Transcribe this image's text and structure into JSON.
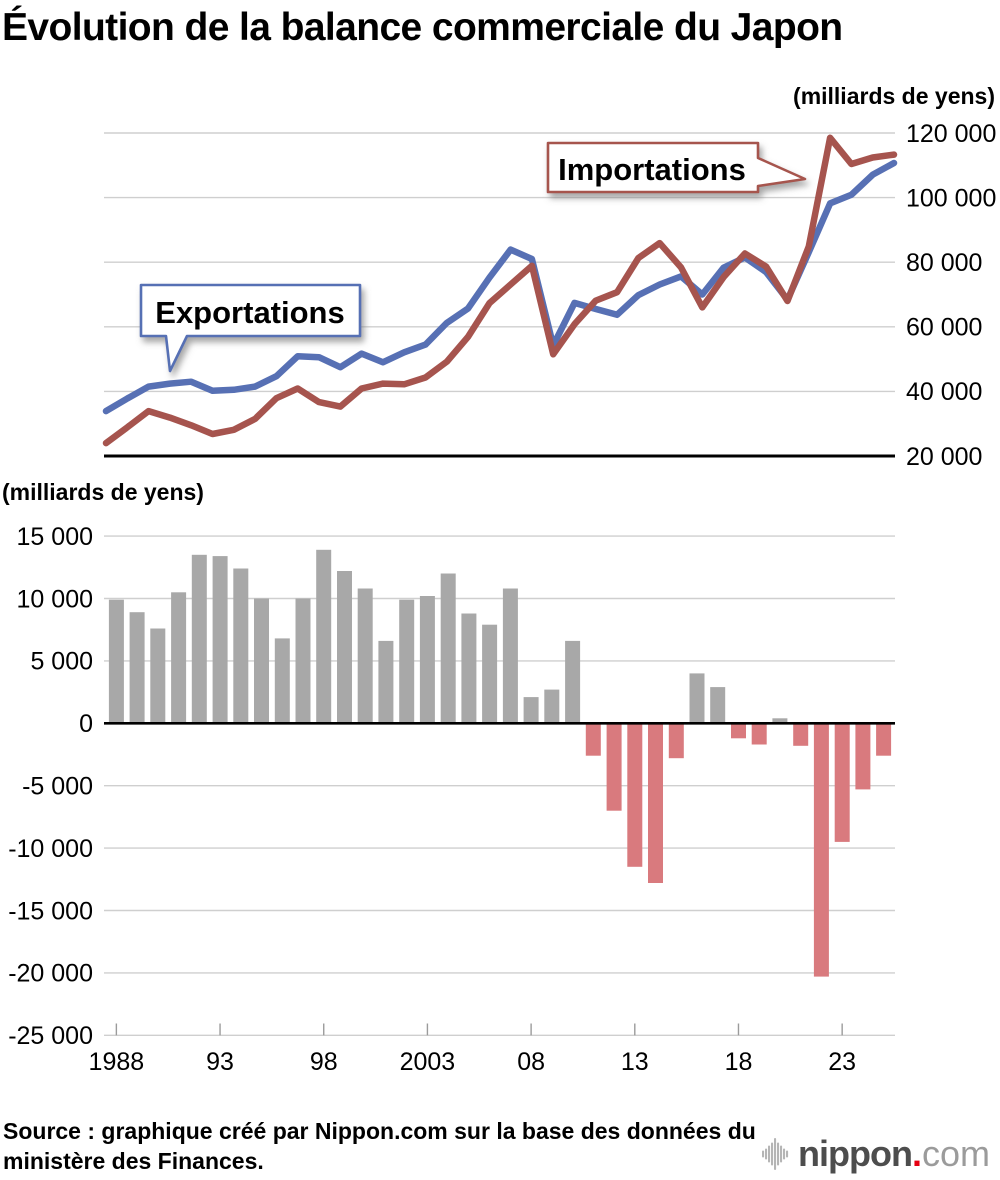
{
  "title": "Évolution de la balance commerciale du Japon",
  "top_unit_label": "(milliards de yens)",
  "bottom_unit_label": "(milliards de yens)",
  "source_line1": "Source : graphique créé par Nippon.com sur la base des données du",
  "source_line2": "ministère des Finances.",
  "logo": {
    "main": "nippon",
    "dot": ".",
    "tld": "com"
  },
  "colors": {
    "exports_line": "#5770B4",
    "imports_line": "#A6544E",
    "positive_bar": "#A8A8A8",
    "negative_bar": "#D97A7E",
    "grid": "#CFCFCF",
    "axis": "#000000",
    "tick": "#9B9B9B",
    "callout_fill": "#FFFFFF",
    "logo_main": "#4D4D4D",
    "logo_tld": "#9B9B9B",
    "logo_dot": "#E60012",
    "logo_icon": "#B5B5B5"
  },
  "chart_data": [
    {
      "type": "line",
      "title": "Exportations et importations du Japon",
      "unit": "milliards de yens",
      "x": [
        1988,
        1989,
        1990,
        1991,
        1992,
        1993,
        1994,
        1995,
        1996,
        1997,
        1998,
        1999,
        2000,
        2001,
        2002,
        2003,
        2004,
        2005,
        2006,
        2007,
        2008,
        2009,
        2010,
        2011,
        2012,
        2013,
        2014,
        2015,
        2016,
        2017,
        2018,
        2019,
        2020,
        2021,
        2022,
        2023,
        2024,
        2025
      ],
      "series": [
        {
          "name": "Exportations",
          "values": [
            33900,
            37800,
            41500,
            42400,
            43000,
            40200,
            40500,
            41500,
            44700,
            50900,
            50600,
            47500,
            51700,
            49000,
            52100,
            54500,
            61200,
            65700,
            75200,
            83900,
            81000,
            54200,
            67400,
            65500,
            63700,
            69800,
            73100,
            75600,
            70000,
            78300,
            81500,
            76900,
            68400,
            83100,
            98200,
            100900,
            107100,
            110700
          ]
        },
        {
          "name": "Importations",
          "values": [
            24000,
            28900,
            33900,
            31900,
            29500,
            26800,
            28100,
            31500,
            37900,
            40900,
            36700,
            35300,
            40900,
            42400,
            42200,
            44300,
            49200,
            56900,
            67300,
            73100,
            78900,
            51500,
            60800,
            68100,
            70700,
            81300,
            85900,
            78400,
            66000,
            75400,
            82700,
            78600,
            68000,
            84900,
            118500,
            110400,
            112400,
            113300
          ]
        }
      ],
      "ylim": [
        20000,
        120000
      ],
      "grid": true,
      "legend_position": "callouts",
      "y_ticks": [
        {
          "value": 120000,
          "label": "120 000"
        },
        {
          "value": 100000,
          "label": "100 000"
        },
        {
          "value": 80000,
          "label": "80 000"
        },
        {
          "value": 60000,
          "label": "60 000"
        },
        {
          "value": 40000,
          "label": "40 000"
        },
        {
          "value": 20000,
          "label": "20 000"
        }
      ],
      "annotations": [
        {
          "text": "Exportations",
          "series": "Exportations"
        },
        {
          "text": "Importations",
          "series": "Importations"
        }
      ]
    },
    {
      "type": "bar",
      "title": "Balance commerciale du Japon",
      "unit": "milliards de yens",
      "x": [
        1988,
        1989,
        1990,
        1991,
        1992,
        1993,
        1994,
        1995,
        1996,
        1997,
        1998,
        1999,
        2000,
        2001,
        2002,
        2003,
        2004,
        2005,
        2006,
        2007,
        2008,
        2009,
        2010,
        2011,
        2012,
        2013,
        2014,
        2015,
        2016,
        2017,
        2018,
        2019,
        2020,
        2021,
        2022,
        2023,
        2024,
        2025
      ],
      "values": [
        9900,
        8900,
        7600,
        10500,
        13500,
        13400,
        12400,
        10000,
        6800,
        10000,
        13900,
        12200,
        10800,
        6600,
        9900,
        10200,
        12000,
        8800,
        7900,
        10800,
        2100,
        2700,
        6600,
        -2600,
        -7000,
        -11500,
        -12800,
        -2800,
        4000,
        2900,
        -1200,
        -1700,
        400,
        -1800,
        -20300,
        -9500,
        -5300,
        -2600
      ],
      "ylim": [
        -25000,
        15000
      ],
      "grid": true,
      "y_ticks": [
        {
          "value": 15000,
          "label": "15 000"
        },
        {
          "value": 10000,
          "label": "10 000"
        },
        {
          "value": 5000,
          "label": "5 000"
        },
        {
          "value": 0,
          "label": "0"
        },
        {
          "value": -5000,
          "label": "-5 000"
        },
        {
          "value": -10000,
          "label": "-10 000"
        },
        {
          "value": -15000,
          "label": "-15 000"
        },
        {
          "value": -20000,
          "label": "-20 000"
        },
        {
          "value": -25000,
          "label": "-25 000"
        }
      ],
      "x_ticks": [
        {
          "year": 1988,
          "label": "1988"
        },
        {
          "year": 1993,
          "label": "93"
        },
        {
          "year": 1998,
          "label": "98"
        },
        {
          "year": 2003,
          "label": "2003"
        },
        {
          "year": 2008,
          "label": "08"
        },
        {
          "year": 2013,
          "label": "13"
        },
        {
          "year": 2018,
          "label": "18"
        },
        {
          "year": 2023,
          "label": "23"
        }
      ]
    }
  ]
}
